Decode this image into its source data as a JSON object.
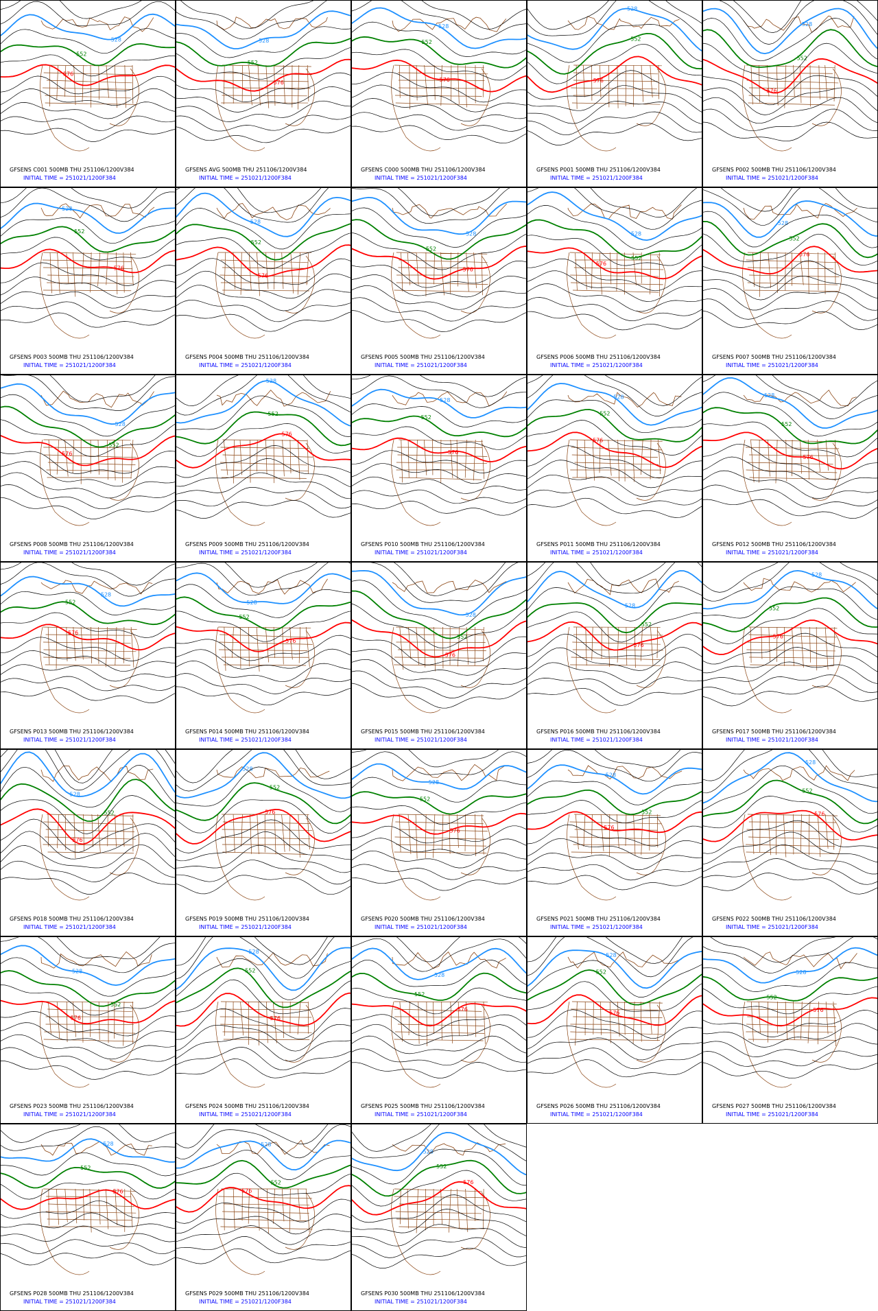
{
  "panels": [
    {
      "title": "GFSENS C001 500MB THU 251106/1200V384",
      "init": "INITIAL TIME = 251021/1200F384",
      "labels": [
        "528",
        "552",
        "576"
      ]
    },
    {
      "title": "GFSENS AVG 500MB THU 251106/1200V384",
      "init": "INITIAL TIME = 251021/1200F384",
      "labels": [
        "528",
        "552",
        "576"
      ]
    },
    {
      "title": "GFSENS C000 500MB THU 251106/1200V384",
      "init": "INITIAL TIME = 251021/1200F384",
      "labels": [
        "528",
        "552",
        "576"
      ]
    },
    {
      "title": "GFSENS P001 500MB THU 251106/1200V384",
      "init": "INITIAL TIME = 251021/1200F384",
      "labels": [
        "528",
        "552",
        "576"
      ]
    },
    {
      "title": "GFSENS P002 500MB THU 251106/1200V384",
      "init": "INITIAL TIME = 251021/1200F384",
      "labels": [
        "528",
        "552",
        "576"
      ]
    },
    {
      "title": "GFSENS P003 500MB THU 251106/1200V384",
      "init": "INITIAL TIME = 251021/1200F384",
      "labels": [
        "528",
        "552",
        "576"
      ]
    },
    {
      "title": "GFSENS P004 500MB THU 251106/1200V384",
      "init": "INITIAL TIME = 251021/1200F384",
      "labels": [
        "528",
        "552",
        "576"
      ]
    },
    {
      "title": "GFSENS P005 500MB THU 251106/1200V384",
      "init": "INITIAL TIME = 251021/1200F384",
      "labels": [
        "528",
        "552",
        "576"
      ]
    },
    {
      "title": "GFSENS P006 500MB THU 251106/1200V384",
      "init": "INITIAL TIME = 251021/1200F384",
      "labels": [
        "528",
        "552",
        "576"
      ]
    },
    {
      "title": "GFSENS P007 500MB THU 251106/1200V384",
      "init": "INITIAL TIME = 251021/1200F384",
      "labels": [
        "528",
        "552",
        "576"
      ]
    },
    {
      "title": "GFSENS P008 500MB THU 251106/1200V384",
      "init": "INITIAL TIME = 251021/1200F384",
      "labels": [
        "528",
        "552",
        "576"
      ]
    },
    {
      "title": "GFSENS P009 500MB THU 251106/1200V384",
      "init": "INITIAL TIME = 251021/1200F384",
      "labels": [
        "528",
        "552",
        "576"
      ]
    },
    {
      "title": "GFSENS P010 500MB THU 251106/1200V384",
      "init": "INITIAL TIME = 251021/1200F384",
      "labels": [
        "528",
        "552",
        "576"
      ]
    },
    {
      "title": "GFSENS P011 500MB THU 251106/1200V384",
      "init": "INITIAL TIME = 251021/1200F384",
      "labels": [
        "528",
        "552",
        "576"
      ]
    },
    {
      "title": "GFSENS P012 500MB THU 251106/1200V384",
      "init": "INITIAL TIME = 251021/1200F384",
      "labels": [
        "528",
        "552",
        "576"
      ]
    },
    {
      "title": "GFSENS P013 500MB THU 251106/1200V384",
      "init": "INITIAL TIME = 251021/1200F384",
      "labels": [
        "528",
        "552",
        "576"
      ]
    },
    {
      "title": "GFSENS P014 500MB THU 251106/1200V384",
      "init": "INITIAL TIME = 251021/1200F384",
      "labels": [
        "528",
        "552",
        "576"
      ]
    },
    {
      "title": "GFSENS P015 500MB THU 251106/1200V384",
      "init": "INITIAL TIME = 251021/1200F384",
      "labels": [
        "528",
        "552",
        "576"
      ]
    },
    {
      "title": "GFSENS P016 500MB THU 251106/1200V384",
      "init": "INITIAL TIME = 251021/1200F384",
      "labels": [
        "528",
        "552",
        "576"
      ]
    },
    {
      "title": "GFSENS P017 500MB THU 251106/1200V384",
      "init": "INITIAL TIME = 251021/1200F384",
      "labels": [
        "528",
        "552",
        "576"
      ]
    },
    {
      "title": "GFSENS P018 500MB THU 251106/1200V384",
      "init": "INITIAL TIME = 251021/1200F384",
      "labels": [
        "528",
        "552",
        "576"
      ]
    },
    {
      "title": "GFSENS P019 500MB THU 251106/1200V384",
      "init": "INITIAL TIME = 251021/1200F384",
      "labels": [
        "528",
        "552",
        "576"
      ]
    },
    {
      "title": "GFSENS P020 500MB THU 251106/1200V384",
      "init": "INITIAL TIME = 251021/1200F384",
      "labels": [
        "528",
        "552",
        "576"
      ]
    },
    {
      "title": "GFSENS P021 500MB THU 251106/1200V384",
      "init": "INITIAL TIME = 251021/1200F384",
      "labels": [
        "528",
        "552",
        "576"
      ]
    },
    {
      "title": "GFSENS P022 500MB THU 251106/1200V384",
      "init": "INITIAL TIME = 251021/1200F384",
      "labels": [
        "528",
        "552",
        "576"
      ]
    },
    {
      "title": "GFSENS P023 500MB THU 251106/1200V384",
      "init": "INITIAL TIME = 251021/1200F384",
      "labels": [
        "528",
        "552",
        "576"
      ]
    },
    {
      "title": "GFSENS P024 500MB THU 251106/1200V384",
      "init": "INITIAL TIME = 251021/1200F384",
      "labels": [
        "528",
        "552",
        "576"
      ]
    },
    {
      "title": "GFSENS P025 500MB THU 251106/1200V384",
      "init": "INITIAL TIME = 251021/1200F384",
      "labels": [
        "528",
        "552",
        "576"
      ]
    },
    {
      "title": "GFSENS P026 500MB THU 251106/1200V384",
      "init": "INITIAL TIME = 251021/1200F384",
      "labels": [
        "528",
        "552",
        "576"
      ]
    },
    {
      "title": "GFSENS P027 500MB THU 251106/1200V384",
      "init": "INITIAL TIME = 251021/1200F384",
      "labels": [
        "528",
        "552",
        "576"
      ]
    },
    {
      "title": "GFSENS P028 500MB THU 251106/1200V384",
      "init": "INITIAL TIME = 251021/1200F384",
      "labels": [
        "528",
        "552",
        "576"
      ]
    },
    {
      "title": "GFSENS P029 500MB THU 251106/1200V384",
      "init": "INITIAL TIME = 251021/1200F384",
      "labels": [
        "528",
        "552",
        "576"
      ]
    },
    {
      "title": "GFSENS P030 500MB THU 251106/1200V384",
      "init": "INITIAL TIME = 251021/1200F384",
      "labels": [
        "528",
        "552",
        "576"
      ]
    }
  ]
}
